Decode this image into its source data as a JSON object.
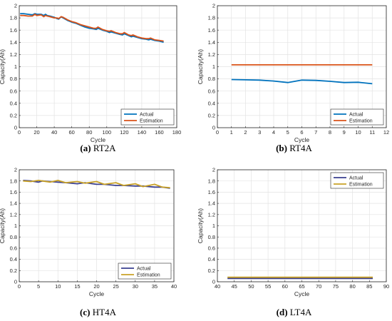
{
  "colors": {
    "actual": "#0072BD",
    "estimation": "#D95319",
    "actual_dark": "#3A3F8F",
    "estimation_gold": "#C9A227",
    "grid": "#e3e3e3",
    "axis": "#262626"
  },
  "chart_data": [
    {
      "type": "line",
      "panel_letter": "(a)",
      "panel_name": "RT2A",
      "xlabel": "Cycle",
      "ylabel": "Capacity(Ah)",
      "xlim": [
        0,
        180
      ],
      "ylim": [
        0,
        2
      ],
      "xticks": [
        0,
        20,
        40,
        60,
        80,
        100,
        120,
        140,
        160,
        180
      ],
      "yticks": [
        0,
        0.2,
        0.4,
        0.6,
        0.8,
        1,
        1.2,
        1.4,
        1.6,
        1.8,
        2
      ],
      "grid": true,
      "legend": "bottom-right",
      "series": [
        {
          "name": "Actual",
          "color": "#0072BD",
          "x": [
            1,
            5,
            10,
            15,
            18,
            20,
            25,
            28,
            30,
            32,
            35,
            40,
            43,
            45,
            48,
            50,
            55,
            60,
            65,
            70,
            75,
            80,
            85,
            88,
            90,
            95,
            100,
            103,
            105,
            110,
            115,
            118,
            120,
            125,
            128,
            130,
            135,
            140,
            145,
            148,
            150,
            155,
            160,
            165
          ],
          "y": [
            1.87,
            1.87,
            1.86,
            1.85,
            1.87,
            1.86,
            1.86,
            1.84,
            1.86,
            1.84,
            1.83,
            1.81,
            1.79,
            1.78,
            1.82,
            1.8,
            1.76,
            1.73,
            1.71,
            1.68,
            1.65,
            1.63,
            1.62,
            1.61,
            1.63,
            1.6,
            1.58,
            1.56,
            1.57,
            1.55,
            1.53,
            1.52,
            1.54,
            1.51,
            1.49,
            1.5,
            1.48,
            1.46,
            1.45,
            1.44,
            1.45,
            1.43,
            1.42,
            1.4
          ]
        },
        {
          "name": "Estimation",
          "color": "#D95319",
          "x": [
            1,
            5,
            10,
            15,
            18,
            20,
            25,
            28,
            30,
            32,
            35,
            40,
            43,
            45,
            48,
            50,
            55,
            60,
            65,
            70,
            75,
            80,
            85,
            88,
            90,
            95,
            100,
            103,
            105,
            110,
            115,
            118,
            120,
            125,
            128,
            130,
            135,
            140,
            145,
            148,
            150,
            155,
            160,
            165
          ],
          "y": [
            1.84,
            1.84,
            1.83,
            1.83,
            1.86,
            1.84,
            1.85,
            1.82,
            1.84,
            1.83,
            1.82,
            1.8,
            1.8,
            1.79,
            1.82,
            1.81,
            1.77,
            1.74,
            1.72,
            1.69,
            1.67,
            1.65,
            1.63,
            1.63,
            1.65,
            1.61,
            1.59,
            1.58,
            1.59,
            1.56,
            1.54,
            1.54,
            1.56,
            1.52,
            1.51,
            1.52,
            1.49,
            1.47,
            1.46,
            1.46,
            1.47,
            1.44,
            1.43,
            1.42
          ]
        }
      ]
    },
    {
      "type": "line",
      "panel_letter": "(b)",
      "panel_name": "RT4A",
      "xlabel": "Cycle",
      "ylabel": "Capacity(Ah)",
      "xlim": [
        0,
        12
      ],
      "ylim": [
        0,
        2
      ],
      "xticks": [
        0,
        1,
        2,
        3,
        4,
        5,
        6,
        7,
        8,
        9,
        10,
        11,
        12
      ],
      "yticks": [
        0,
        0.2,
        0.4,
        0.6,
        0.8,
        1,
        1.2,
        1.4,
        1.6,
        1.8,
        2
      ],
      "grid": true,
      "legend": "bottom-right",
      "series": [
        {
          "name": "Actual",
          "color": "#0072BD",
          "x": [
            1,
            2,
            3,
            4,
            5,
            6,
            7,
            8,
            9,
            10,
            11
          ],
          "y": [
            0.79,
            0.785,
            0.78,
            0.765,
            0.74,
            0.78,
            0.775,
            0.76,
            0.74,
            0.745,
            0.72
          ]
        },
        {
          "name": "Estimation",
          "color": "#D95319",
          "x": [
            1,
            2,
            3,
            4,
            5,
            6,
            7,
            8,
            9,
            10,
            11
          ],
          "y": [
            1.03,
            1.03,
            1.03,
            1.03,
            1.03,
            1.03,
            1.03,
            1.03,
            1.03,
            1.03,
            1.03
          ]
        }
      ]
    },
    {
      "type": "line",
      "panel_letter": "(c)",
      "panel_name": "HT4A",
      "xlabel": "Cycle",
      "ylabel": "Capacity(Ah)",
      "xlim": [
        0,
        40
      ],
      "ylim": [
        0,
        2
      ],
      "xticks": [
        0,
        5,
        10,
        15,
        20,
        25,
        30,
        35,
        40
      ],
      "yticks": [
        0,
        0.2,
        0.4,
        0.6,
        0.8,
        1,
        1.2,
        1.4,
        1.6,
        1.8,
        2
      ],
      "grid": true,
      "legend": "bottom-right",
      "series": [
        {
          "name": "Actual",
          "color": "#3A3F8F",
          "x": [
            1,
            3,
            5,
            6,
            8,
            10,
            12,
            15,
            17,
            20,
            22,
            25,
            27,
            30,
            32,
            35,
            37,
            39
          ],
          "y": [
            1.81,
            1.8,
            1.78,
            1.8,
            1.79,
            1.78,
            1.77,
            1.75,
            1.77,
            1.74,
            1.74,
            1.72,
            1.72,
            1.71,
            1.71,
            1.69,
            1.69,
            1.67
          ]
        },
        {
          "name": "Estimation",
          "color": "#C9A227",
          "x": [
            1,
            3,
            5,
            6,
            8,
            10,
            12,
            15,
            17,
            20,
            22,
            25,
            27,
            30,
            32,
            35,
            37,
            39
          ],
          "y": [
            1.8,
            1.79,
            1.81,
            1.8,
            1.78,
            1.81,
            1.77,
            1.79,
            1.76,
            1.79,
            1.74,
            1.77,
            1.72,
            1.75,
            1.7,
            1.74,
            1.69,
            1.68
          ]
        }
      ]
    },
    {
      "type": "line",
      "panel_letter": "(d)",
      "panel_name": "LT4A",
      "xlabel": "Cycle",
      "ylabel": "Capacity(Ah)",
      "xlim": [
        40,
        90
      ],
      "ylim": [
        0,
        2
      ],
      "xticks": [
        40,
        45,
        50,
        55,
        60,
        65,
        70,
        75,
        80,
        85,
        90
      ],
      "yticks": [
        0,
        0.2,
        0.4,
        0.6,
        0.8,
        1,
        1.2,
        1.4,
        1.6,
        1.8,
        2
      ],
      "grid": true,
      "legend": "top-right",
      "series": [
        {
          "name": "Actual",
          "color": "#3A3F8F",
          "x": [
            43,
            46,
            50,
            54,
            58,
            62,
            66,
            70,
            74,
            78,
            82,
            86
          ],
          "y": [
            0.06,
            0.06,
            0.06,
            0.06,
            0.06,
            0.06,
            0.06,
            0.06,
            0.06,
            0.06,
            0.06,
            0.06
          ]
        },
        {
          "name": "Estimation",
          "color": "#C9A227",
          "x": [
            43,
            46,
            50,
            54,
            58,
            62,
            66,
            70,
            74,
            78,
            82,
            86
          ],
          "y": [
            0.08,
            0.08,
            0.08,
            0.08,
            0.08,
            0.08,
            0.08,
            0.08,
            0.08,
            0.08,
            0.08,
            0.08
          ]
        }
      ]
    }
  ]
}
